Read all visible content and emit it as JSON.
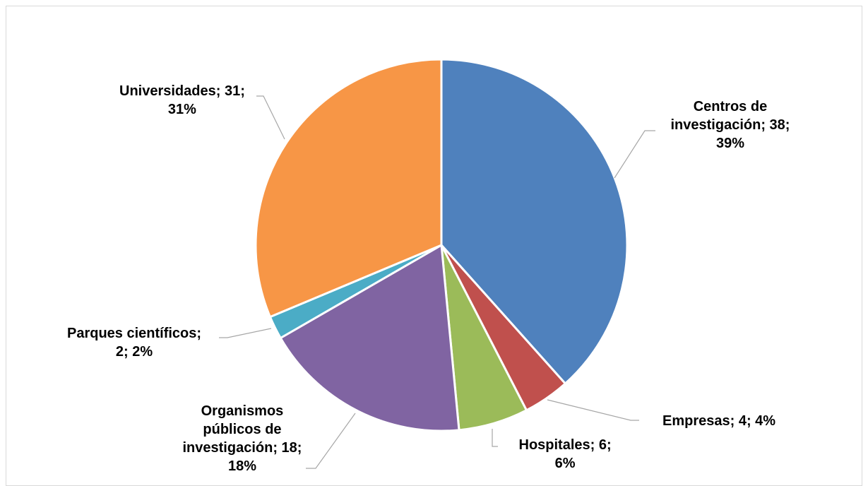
{
  "chart_data": {
    "type": "pie",
    "title": "",
    "labels_format": "name; value; percent",
    "start_angle_deg": 0,
    "direction": "clockwise",
    "slices": [
      {
        "name": "Centros de investigación",
        "value": 38,
        "percent": "39%",
        "color": "#4f81bd",
        "label_lines": [
          "Centros de",
          "investigación; 38;",
          "39%"
        ]
      },
      {
        "name": "Empresas",
        "value": 4,
        "percent": "4%",
        "color": "#c0504d",
        "label_lines": [
          "Empresas; 4; 4%"
        ]
      },
      {
        "name": "Hospitales",
        "value": 6,
        "percent": "6%",
        "color": "#9bbb59",
        "label_lines": [
          "Hospitales; 6;",
          "6%"
        ]
      },
      {
        "name": "Organismos públicos de investigación",
        "value": 18,
        "percent": "18%",
        "color": "#8064a2",
        "label_lines": [
          "Organismos",
          "públicos de",
          "investigación; 18;",
          "18%"
        ]
      },
      {
        "name": "Parques científicos",
        "value": 2,
        "percent": "2%",
        "color": "#4bacc6",
        "label_lines": [
          "Parques científicos;",
          "2; 2%"
        ]
      },
      {
        "name": "Universidades",
        "value": 31,
        "percent": "31%",
        "color": "#f79646",
        "label_lines": [
          "Universidades; 31;",
          "31%"
        ]
      }
    ]
  }
}
